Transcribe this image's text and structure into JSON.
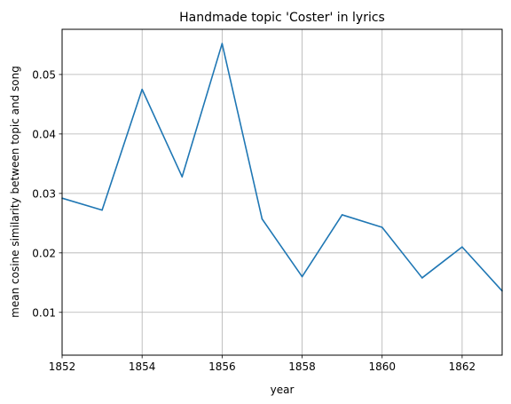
{
  "chart_data": {
    "type": "line",
    "title": "Handmade topic 'Coster' in lyrics",
    "xlabel": "year",
    "ylabel": "mean cosine similarity between topic and song",
    "xlim": [
      1852,
      1863
    ],
    "ylim": [
      0.0028,
      0.0576
    ],
    "x_ticks": [
      1852,
      1854,
      1856,
      1858,
      1860,
      1862
    ],
    "y_ticks": [
      0.01,
      0.02,
      0.03,
      0.04,
      0.05
    ],
    "x_tick_labels": [
      "1852",
      "1854",
      "1856",
      "1858",
      "1860",
      "1862"
    ],
    "y_tick_labels": [
      "0.01",
      "0.02",
      "0.03",
      "0.04",
      "0.05"
    ],
    "grid": true,
    "series": [
      {
        "color": "#1f77b4",
        "x": [
          1852,
          1853,
          1854,
          1855,
          1856,
          1857,
          1858,
          1859,
          1860,
          1861,
          1862,
          1863
        ],
        "values": [
          0.0292,
          0.0272,
          0.0475,
          0.0328,
          0.0552,
          0.0257,
          0.016,
          0.0264,
          0.0243,
          0.0158,
          0.021,
          0.0136
        ]
      }
    ]
  }
}
